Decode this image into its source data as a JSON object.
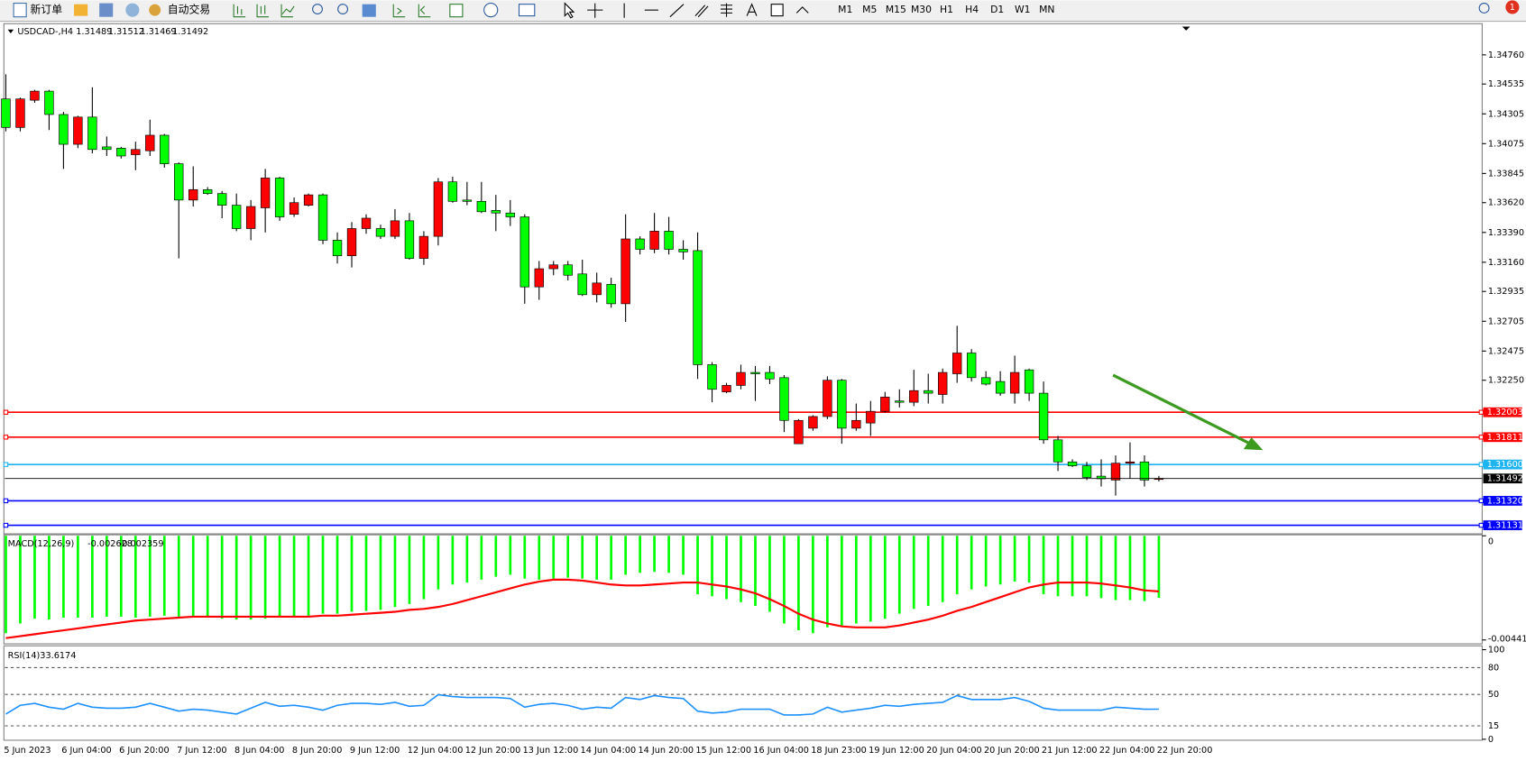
{
  "toolbar": {
    "new_order": "新订单",
    "auto_trading": "自动交易",
    "timeframes": [
      "M1",
      "M5",
      "M15",
      "M30",
      "H1",
      "H4",
      "D1",
      "W1",
      "MN"
    ],
    "notifications": "1"
  },
  "chart_data": [
    {
      "type": "candlestick",
      "symbol": "USDCAD-,H4",
      "categories": [
        "5 Jun 2023",
        null,
        null,
        null,
        "6 Jun 04:00",
        null,
        null,
        null,
        "6 Jun 20:00",
        null,
        null,
        null,
        "7 Jun 12:00",
        null,
        null,
        null,
        "8 Jun 04:00",
        null,
        null,
        null,
        "8 Jun 20:00",
        null,
        null,
        null,
        "9 Jun 12:00",
        null,
        null,
        null,
        "12 Jun 04:00",
        null,
        null,
        null,
        "12 Jun 20:00",
        null,
        null,
        null,
        "13 Jun 12:00",
        null,
        null,
        null,
        "14 Jun 04:00",
        null,
        null,
        null,
        "14 Jun 20:00",
        null,
        null,
        null,
        "15 Jun 12:00",
        null,
        null,
        null,
        "16 Jun 04:00",
        null,
        null,
        null,
        "18 Jun 23:00",
        null,
        null,
        null,
        "19 Jun 12:00",
        null,
        null,
        null,
        "20 Jun 04:00",
        null,
        null,
        null,
        "20 Jun 20:00",
        null,
        null,
        null,
        "21 Jun 12:00",
        null,
        null,
        null,
        "22 Jun 04:00",
        null,
        null,
        null,
        "22 Jun 20:00"
      ],
      "open": [
        1.3442,
        1.342,
        1.3441,
        1.3448,
        1.343,
        1.3407,
        1.3428,
        1.3405,
        1.3404,
        1.3399,
        1.3402,
        1.3414,
        1.3392,
        1.3364,
        1.3372,
        1.3369,
        1.336,
        1.3342,
        1.3358,
        1.3381,
        1.3353,
        1.336,
        1.3368,
        1.3333,
        1.3321,
        1.3342,
        1.3342,
        1.3336,
        1.3348,
        1.3319,
        1.3336,
        1.3378,
        1.3364,
        1.3363,
        1.3356,
        1.3354,
        1.3351,
        1.3297,
        1.3311,
        1.3314,
        1.3307,
        1.3291,
        1.3299,
        1.3284,
        1.3334,
        1.3326,
        1.334,
        1.3326,
        1.3325,
        1.3237,
        1.3216,
        1.3221,
        1.3231,
        1.3231,
        1.3227,
        1.3176,
        1.3188,
        1.3197,
        1.3225,
        1.3188,
        1.3192,
        1.3201,
        1.3209,
        1.3208,
        1.3217,
        1.3214,
        1.323,
        1.3246,
        1.3227,
        1.3224,
        1.3215,
        1.3233,
        1.3215,
        1.3179,
        1.3162,
        1.3159,
        1.3151,
        1.3148,
        1.3161,
        1.3162,
        1.31489
      ],
      "high": [
        1.3461,
        1.3443,
        1.3449,
        1.3449,
        1.3432,
        1.3429,
        1.3451,
        1.3413,
        1.3405,
        1.3409,
        1.3426,
        1.3415,
        1.3393,
        1.339,
        1.3374,
        1.3371,
        1.3369,
        1.3364,
        1.3388,
        1.3382,
        1.3366,
        1.3369,
        1.3369,
        1.3339,
        1.3347,
        1.3353,
        1.3345,
        1.3357,
        1.3354,
        1.334,
        1.3381,
        1.3382,
        1.3378,
        1.3378,
        1.3368,
        1.3364,
        1.3353,
        1.3317,
        1.3317,
        1.3317,
        1.3318,
        1.3308,
        1.3304,
        1.3353,
        1.3336,
        1.3354,
        1.3351,
        1.3333,
        1.3339,
        1.3239,
        1.3223,
        1.3237,
        1.3236,
        1.3236,
        1.3229,
        1.3195,
        1.3198,
        1.3228,
        1.3226,
        1.3207,
        1.3209,
        1.3216,
        1.3218,
        1.3233,
        1.323,
        1.3234,
        1.3267,
        1.3249,
        1.3232,
        1.3232,
        1.3244,
        1.3234,
        1.3224,
        1.3182,
        1.3164,
        1.3162,
        1.3164,
        1.3167,
        1.3177,
        1.3167,
        1.31512
      ],
      "low": [
        1.3417,
        1.3417,
        1.3439,
        1.3418,
        1.3388,
        1.3404,
        1.34,
        1.3398,
        1.3396,
        1.3387,
        1.3398,
        1.3389,
        1.3319,
        1.3359,
        1.3368,
        1.335,
        1.334,
        1.3333,
        1.3339,
        1.3348,
        1.3351,
        1.3359,
        1.333,
        1.3315,
        1.3312,
        1.3338,
        1.3334,
        1.3334,
        1.3318,
        1.3314,
        1.3329,
        1.3362,
        1.336,
        1.3354,
        1.334,
        1.3344,
        1.3284,
        1.3287,
        1.3306,
        1.3302,
        1.329,
        1.3285,
        1.3281,
        1.327,
        1.3322,
        1.3323,
        1.3322,
        1.3318,
        1.3226,
        1.3208,
        1.3215,
        1.3218,
        1.3209,
        1.3222,
        1.3185,
        1.3176,
        1.3186,
        1.3195,
        1.3176,
        1.3186,
        1.3182,
        1.32,
        1.3204,
        1.3205,
        1.3207,
        1.3207,
        1.3223,
        1.3224,
        1.3221,
        1.3213,
        1.3207,
        1.3209,
        1.3176,
        1.3155,
        1.3158,
        1.3148,
        1.3143,
        1.3136,
        1.3149,
        1.3143,
        1.31469
      ],
      "close": [
        1.342,
        1.3442,
        1.3448,
        1.343,
        1.3407,
        1.3428,
        1.3403,
        1.3403,
        1.3398,
        1.3403,
        1.3414,
        1.3392,
        1.3364,
        1.3372,
        1.3369,
        1.336,
        1.3342,
        1.3359,
        1.3381,
        1.3351,
        1.3362,
        1.3368,
        1.3333,
        1.3321,
        1.3342,
        1.335,
        1.3336,
        1.3348,
        1.3319,
        1.3336,
        1.3378,
        1.3363,
        1.3363,
        1.3355,
        1.3354,
        1.3351,
        1.3297,
        1.3311,
        1.3314,
        1.3306,
        1.3291,
        1.33,
        1.3284,
        1.3334,
        1.3326,
        1.334,
        1.3326,
        1.3324,
        1.3237,
        1.3218,
        1.3221,
        1.3231,
        1.323,
        1.3226,
        1.3194,
        1.3194,
        1.3197,
        1.3225,
        1.3188,
        1.3194,
        1.3201,
        1.3212,
        1.3208,
        1.3217,
        1.3215,
        1.3231,
        1.3246,
        1.3227,
        1.3222,
        1.3215,
        1.3231,
        1.3215,
        1.3179,
        1.3162,
        1.3159,
        1.315,
        1.3149,
        1.3161,
        1.3162,
        1.3148,
        1.31492
      ],
      "up_color": "#ff0000",
      "down_color": "#00ff00",
      "ylim": [
        1.31065,
        1.34993
      ],
      "yticks": [
        {
          "value": 1.3476,
          "label": "1.34760"
        },
        1.34535,
        1.34305,
        1.34075,
        1.33845,
        {
          "value": 1.3362,
          "label": "1.33620"
        },
        {
          "value": 1.3339,
          "label": "1.33390"
        },
        {
          "value": 1.3316,
          "label": "1.33160"
        },
        1.32935,
        1.32705,
        1.32475,
        {
          "value": 1.3225,
          "label": "1.32250"
        }
      ],
      "levels": [
        {
          "value": 1.32003,
          "color": "#ff0000"
        },
        {
          "value": 1.31811,
          "color": "#ff0000"
        },
        {
          "value": 1.316,
          "label": "1.31600",
          "color": "#1eb4f0"
        },
        {
          "value": 1.3132,
          "label": "1.31320",
          "color": "#0000ff"
        },
        {
          "value": 1.31131,
          "color": "#0000ff"
        }
      ]
    },
    {
      "type": "macd",
      "title": "MACD(12,26,9)",
      "histogram": {
        "color": "#00ff00",
        "values": [
          -0.00413,
          -0.003717,
          -0.003511,
          -0.003552,
          -0.003469,
          -0.003469,
          -0.003469,
          -0.003428,
          -0.003428,
          -0.003469,
          -0.003428,
          -0.003387,
          -0.003428,
          -0.003469,
          -0.003469,
          -0.003511,
          -0.003552,
          -0.003552,
          -0.003511,
          -0.003469,
          -0.003469,
          -0.003387,
          -0.003304,
          -0.003304,
          -0.003221,
          -0.00318,
          -0.003139,
          -0.003015,
          -0.002891,
          -0.002685,
          -0.002272,
          -0.002065,
          -0.001982,
          -0.001859,
          -0.001735,
          -0.001652,
          -0.001817,
          -0.001859,
          -0.001817,
          -0.001776,
          -0.001817,
          -0.001859,
          -0.001859,
          -0.001652,
          -0.001569,
          -0.001528,
          -0.001569,
          -0.001652,
          -0.002478,
          -0.002561,
          -0.002685,
          -0.002808,
          -0.002974,
          -0.003221,
          -0.003717,
          -0.004006,
          -0.00413,
          -0.003882,
          -0.003841,
          -0.003717,
          -0.003634,
          -0.003511,
          -0.003304,
          -0.003098,
          -0.002974,
          -0.002808,
          -0.002478,
          -0.002272,
          -0.002148,
          -0.002065,
          -0.001941,
          -0.001982,
          -0.002478,
          -0.002561,
          -0.002561,
          -0.002561,
          -0.002643,
          -0.002726,
          -0.002726,
          -0.002767,
          -0.002628
        ]
      },
      "signal": {
        "color": "#ff0000",
        "values": [
          -0.004337,
          -0.004254,
          -0.004171,
          -0.004089,
          -0.004006,
          -0.003924,
          -0.003841,
          -0.003758,
          -0.003676,
          -0.003593,
          -0.003552,
          -0.003511,
          -0.003469,
          -0.003428,
          -0.003428,
          -0.003428,
          -0.003428,
          -0.003428,
          -0.003428,
          -0.003428,
          -0.003428,
          -0.003428,
          -0.003387,
          -0.003387,
          -0.003345,
          -0.003304,
          -0.003263,
          -0.003221,
          -0.003139,
          -0.003098,
          -0.003015,
          -0.002891,
          -0.002726,
          -0.002561,
          -0.002395,
          -0.00223,
          -0.002065,
          -0.001941,
          -0.001859,
          -0.001859,
          -0.0019,
          -0.001982,
          -0.002065,
          -0.002106,
          -0.002106,
          -0.002065,
          -0.002024,
          -0.001982,
          -0.001982,
          -0.002065,
          -0.002148,
          -0.002272,
          -0.002437,
          -0.002685,
          -0.002974,
          -0.003304,
          -0.003552,
          -0.003717,
          -0.003841,
          -0.003882,
          -0.003882,
          -0.003882,
          -0.0038,
          -0.003676,
          -0.003552,
          -0.003387,
          -0.00318,
          -0.003015,
          -0.002808,
          -0.002602,
          -0.002395,
          -0.002189,
          -0.002065,
          -0.001982,
          -0.001982,
          -0.001982,
          -0.002024,
          -0.002106,
          -0.002189,
          -0.002313,
          -0.002359
        ]
      },
      "ylim": [
        -0.004415,
        0
      ],
      "yticks": [
        -0.004415,
        0
      ]
    },
    {
      "type": "rsi",
      "title": "RSI(14)",
      "color": "#1e90ff",
      "values": [
        28.2,
        37.9,
        40.1,
        35.8,
        33.6,
        40.1,
        35.8,
        34.7,
        34.7,
        35.8,
        40.1,
        35.8,
        31.4,
        33.6,
        32.5,
        30.3,
        28.2,
        34.7,
        41.2,
        36.8,
        37.9,
        35.8,
        32.5,
        37.9,
        40.1,
        40.1,
        39.0,
        41.2,
        36.8,
        37.9,
        49.8,
        47.7,
        46.6,
        46.6,
        46.6,
        45.5,
        35.8,
        39.0,
        40.1,
        37.9,
        33.6,
        35.8,
        34.7,
        46.6,
        44.4,
        48.8,
        46.6,
        45.5,
        31.4,
        29.3,
        30.3,
        33.6,
        33.6,
        33.6,
        27.1,
        27.1,
        28.2,
        35.8,
        30.3,
        32.5,
        34.7,
        37.9,
        36.8,
        39.0,
        40.1,
        41.2,
        48.8,
        44.4,
        44.4,
        44.4,
        46.6,
        42.3,
        34.7,
        32.5,
        32.5,
        32.5,
        32.5,
        35.8,
        34.7,
        33.6,
        33.6174
      ],
      "ylim": [
        0,
        100
      ],
      "yticks": [
        0,
        15,
        50,
        80,
        100
      ]
    }
  ]
}
